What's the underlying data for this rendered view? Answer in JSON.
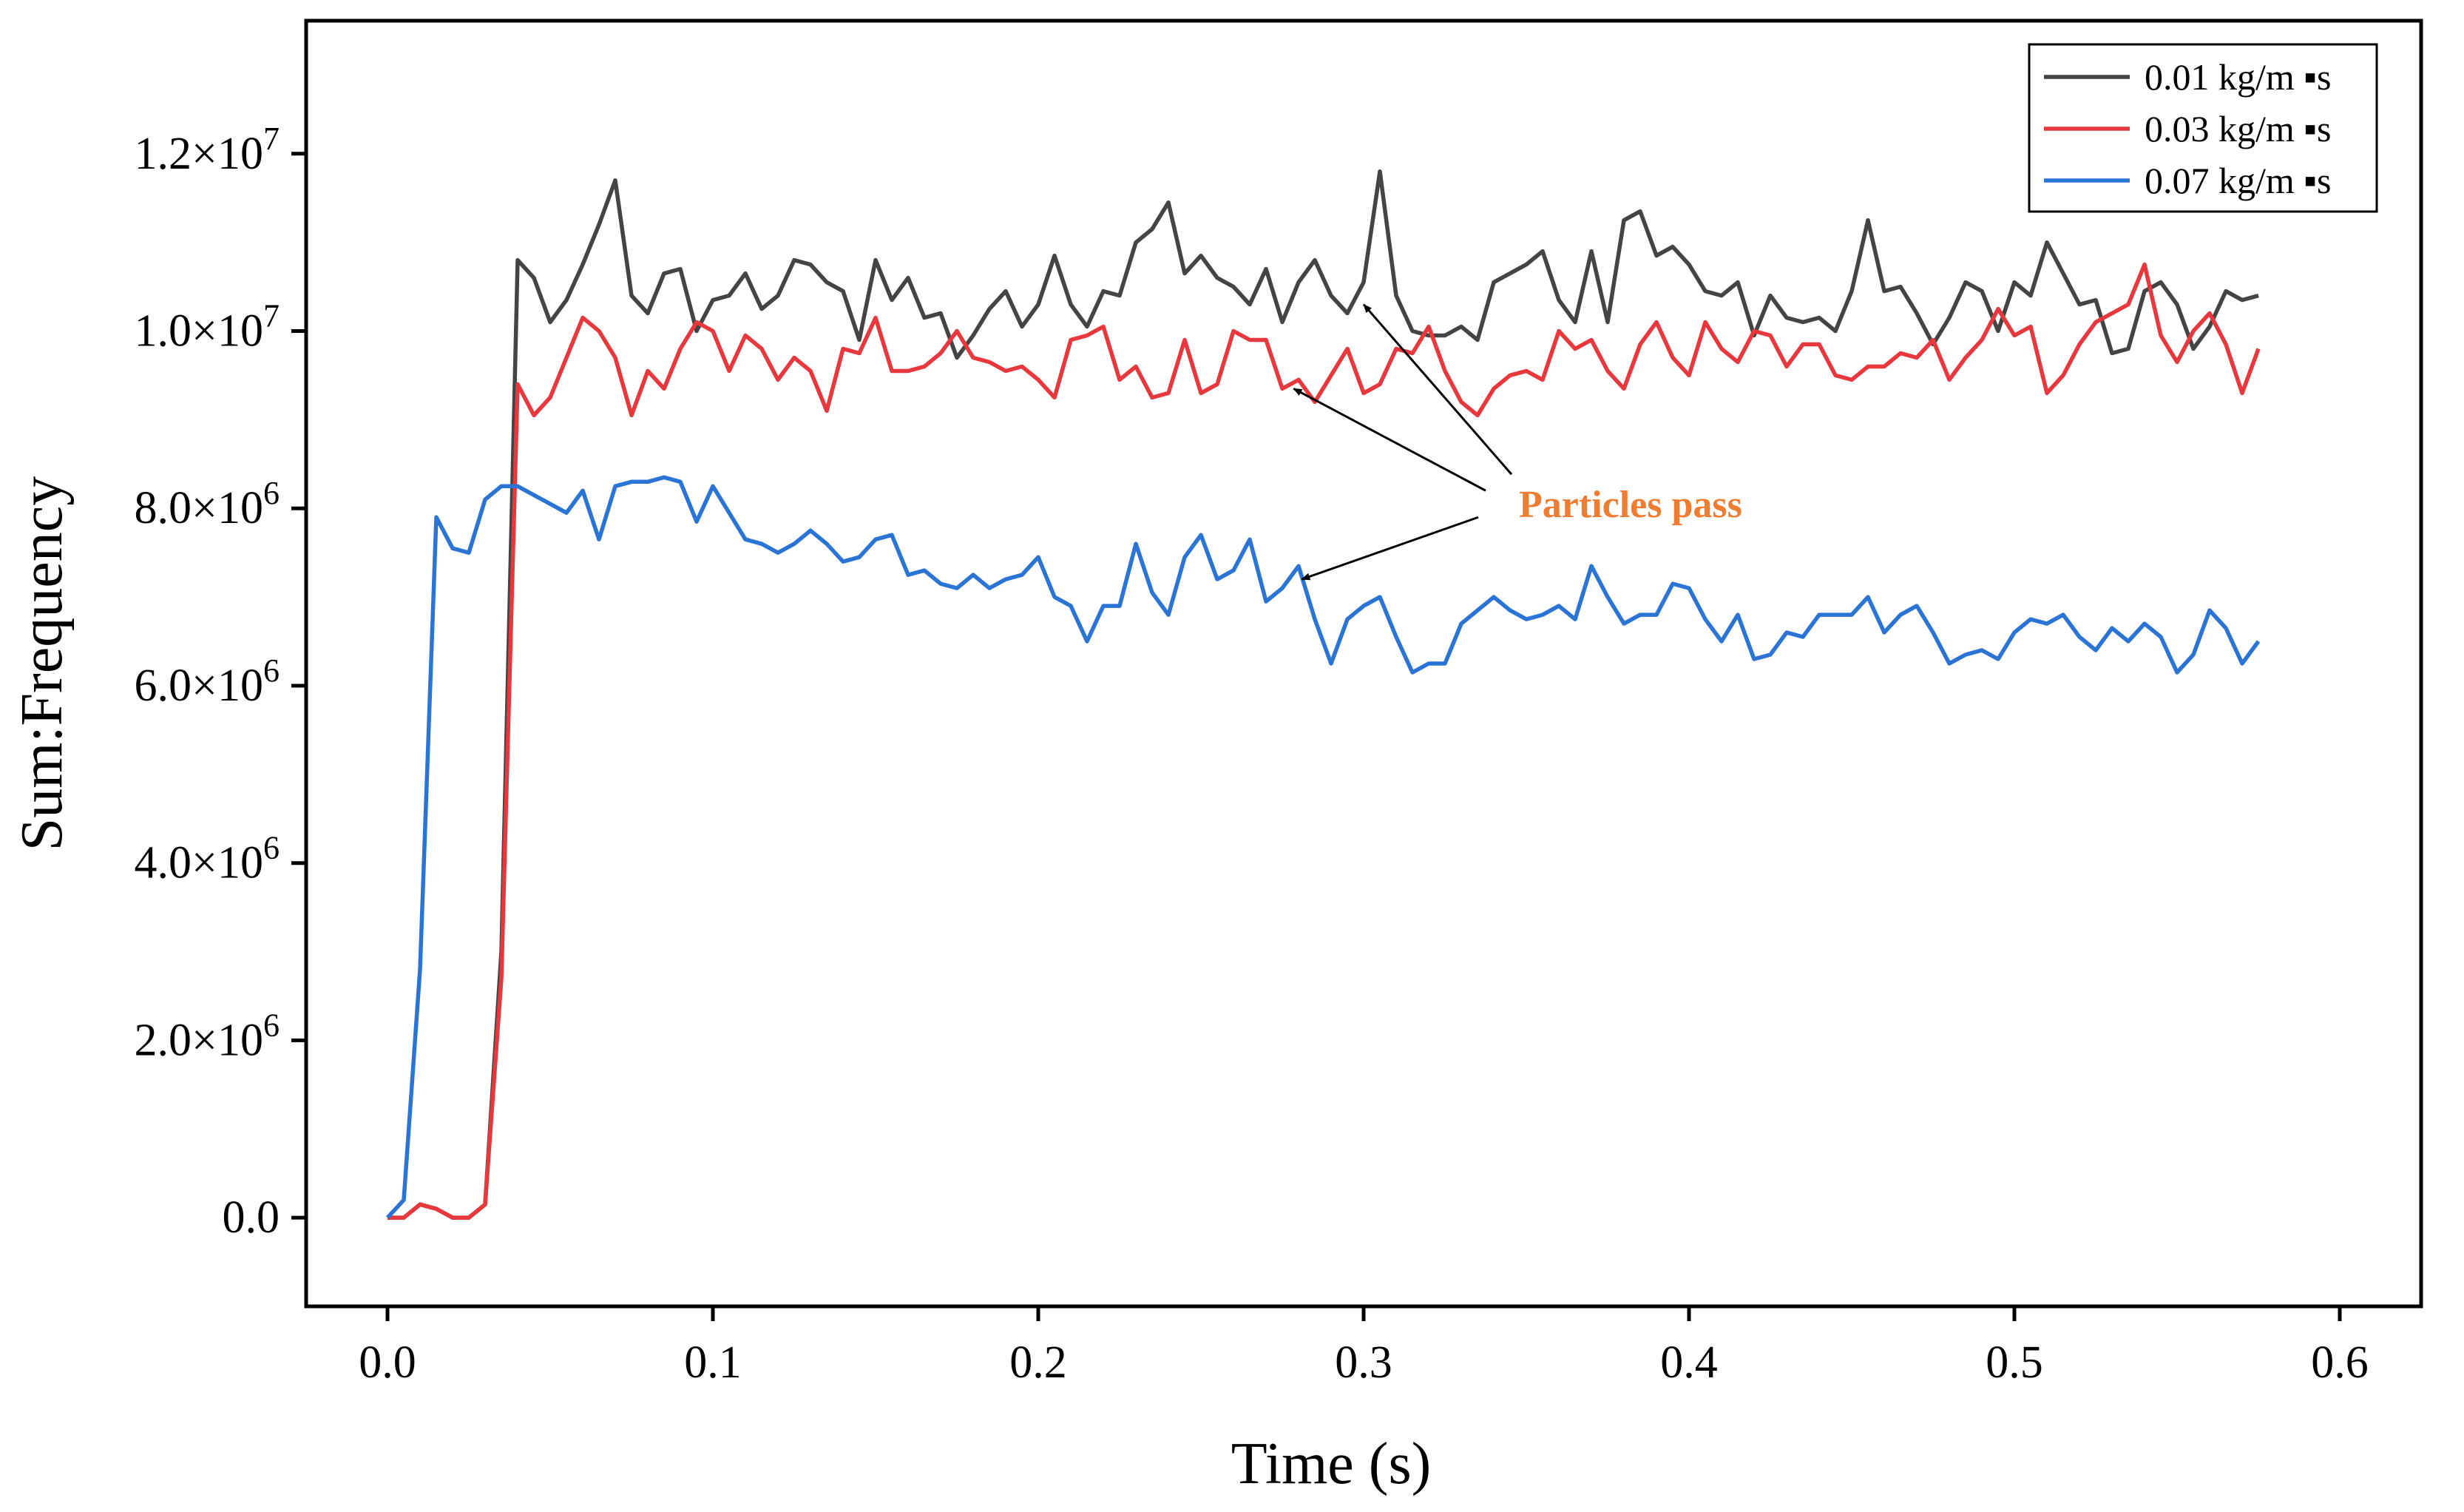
{
  "chart_data": {
    "type": "line",
    "title": "",
    "xlabel": "Time (s)",
    "ylabel": "Sum:Frequency",
    "xlim": [
      -0.025,
      0.625
    ],
    "ylim": [
      -1000000,
      13500000
    ],
    "x_ticks": [
      {
        "value": 0.0,
        "label": "0.0"
      },
      {
        "value": 0.1,
        "label": "0.1"
      },
      {
        "value": 0.2,
        "label": "0.2"
      },
      {
        "value": 0.3,
        "label": "0.3"
      },
      {
        "value": 0.4,
        "label": "0.4"
      },
      {
        "value": 0.5,
        "label": "0.5"
      },
      {
        "value": 0.6,
        "label": "0.6"
      }
    ],
    "y_ticks": [
      {
        "value": 0,
        "mantissa": "0.0",
        "exp": ""
      },
      {
        "value": 2000000,
        "mantissa": "2.0×10",
        "exp": "6"
      },
      {
        "value": 4000000,
        "mantissa": "4.0×10",
        "exp": "6"
      },
      {
        "value": 6000000,
        "mantissa": "6.0×10",
        "exp": "6"
      },
      {
        "value": 8000000,
        "mantissa": "8.0×10",
        "exp": "6"
      },
      {
        "value": 10000000,
        "mantissa": "1.0×10",
        "exp": "7"
      },
      {
        "value": 12000000,
        "mantissa": "1.2×10",
        "exp": "7"
      }
    ],
    "grid": false,
    "legend_position": "top-right",
    "series": [
      {
        "name": "0.01 kg/m ▪s",
        "color": "#444444",
        "x": [
          0.0,
          0.005,
          0.01,
          0.015,
          0.02,
          0.025,
          0.03,
          0.035,
          0.04,
          0.045,
          0.05,
          0.055,
          0.06,
          0.065,
          0.07,
          0.075,
          0.08,
          0.085,
          0.09,
          0.095,
          0.1,
          0.105,
          0.11,
          0.115,
          0.12,
          0.125,
          0.13,
          0.135,
          0.14,
          0.145,
          0.15,
          0.155,
          0.16,
          0.165,
          0.17,
          0.175,
          0.18,
          0.185,
          0.19,
          0.195,
          0.2,
          0.205,
          0.21,
          0.215,
          0.22,
          0.225,
          0.23,
          0.235,
          0.24,
          0.245,
          0.25,
          0.255,
          0.26,
          0.265,
          0.27,
          0.275,
          0.28,
          0.285,
          0.29,
          0.295,
          0.3,
          0.305,
          0.31,
          0.315,
          0.32,
          0.325,
          0.33,
          0.335,
          0.34,
          0.345,
          0.35,
          0.355,
          0.36,
          0.365,
          0.37,
          0.375,
          0.38,
          0.385,
          0.39,
          0.395,
          0.4,
          0.405,
          0.41,
          0.415,
          0.42,
          0.425,
          0.43,
          0.435,
          0.44,
          0.445,
          0.45,
          0.455,
          0.46,
          0.465,
          0.47,
          0.475,
          0.48,
          0.485,
          0.49,
          0.495,
          0.5,
          0.505,
          0.51,
          0.515,
          0.52,
          0.525,
          0.53,
          0.535,
          0.54,
          0.545,
          0.55,
          0.555,
          0.56,
          0.565,
          0.57,
          0.575
        ],
        "y": [
          0,
          0,
          150000,
          100000,
          0,
          0,
          150000,
          3000000,
          10800000,
          10600000,
          10100000,
          10350000,
          10750000,
          11200000,
          11700000,
          10400000,
          10200000,
          10650000,
          10700000,
          10000000,
          10350000,
          10400000,
          10650000,
          10250000,
          10400000,
          10800000,
          10750000,
          10550000,
          10450000,
          9900000,
          10800000,
          10350000,
          10600000,
          10150000,
          10200000,
          9700000,
          9950000,
          10250000,
          10450000,
          10050000,
          10300000,
          10850000,
          10300000,
          10050000,
          10450000,
          10400000,
          11000000,
          11150000,
          11450000,
          10650000,
          10850000,
          10600000,
          10500000,
          10300000,
          10700000,
          10100000,
          10550000,
          10800000,
          10400000,
          10200000,
          10550000,
          11800000,
          10400000,
          10000000,
          9950000,
          9950000,
          10050000,
          9900000,
          10550000,
          10650000,
          10750000,
          10900000,
          10350000,
          10100000,
          10900000,
          10100000,
          11250000,
          11350000,
          10850000,
          10950000,
          10750000,
          10450000,
          10400000,
          10550000,
          9950000,
          10400000,
          10150000,
          10100000,
          10150000,
          10000000,
          10450000,
          11250000,
          10450000,
          10500000,
          10200000,
          9850000,
          10150000,
          10550000,
          10450000,
          10000000,
          10550000,
          10400000,
          11000000,
          10650000,
          10300000,
          10350000,
          9750000,
          9800000,
          10450000,
          10550000,
          10300000,
          9800000,
          10050000,
          10450000,
          10350000,
          10400000
        ]
      },
      {
        "name": "0.03 kg/m ▪s",
        "color": "#e8383d",
        "x": [
          0.0,
          0.005,
          0.01,
          0.015,
          0.02,
          0.025,
          0.03,
          0.035,
          0.04,
          0.045,
          0.05,
          0.055,
          0.06,
          0.065,
          0.07,
          0.075,
          0.08,
          0.085,
          0.09,
          0.095,
          0.1,
          0.105,
          0.11,
          0.115,
          0.12,
          0.125,
          0.13,
          0.135,
          0.14,
          0.145,
          0.15,
          0.155,
          0.16,
          0.165,
          0.17,
          0.175,
          0.18,
          0.185,
          0.19,
          0.195,
          0.2,
          0.205,
          0.21,
          0.215,
          0.22,
          0.225,
          0.23,
          0.235,
          0.24,
          0.245,
          0.25,
          0.255,
          0.26,
          0.265,
          0.27,
          0.275,
          0.28,
          0.285,
          0.29,
          0.295,
          0.3,
          0.305,
          0.31,
          0.315,
          0.32,
          0.325,
          0.33,
          0.335,
          0.34,
          0.345,
          0.35,
          0.355,
          0.36,
          0.365,
          0.37,
          0.375,
          0.38,
          0.385,
          0.39,
          0.395,
          0.4,
          0.405,
          0.41,
          0.415,
          0.42,
          0.425,
          0.43,
          0.435,
          0.44,
          0.445,
          0.45,
          0.455,
          0.46,
          0.465,
          0.47,
          0.475,
          0.48,
          0.485,
          0.49,
          0.495,
          0.5,
          0.505,
          0.51,
          0.515,
          0.52,
          0.525,
          0.53,
          0.535,
          0.54,
          0.545,
          0.55,
          0.555,
          0.56,
          0.565,
          0.57,
          0.575
        ],
        "y": [
          0,
          0,
          150000,
          100000,
          0,
          0,
          150000,
          2700000,
          9400000,
          9050000,
          9250000,
          9700000,
          10150000,
          10000000,
          9700000,
          9050000,
          9550000,
          9350000,
          9800000,
          10100000,
          10000000,
          9550000,
          9950000,
          9800000,
          9450000,
          9700000,
          9550000,
          9100000,
          9800000,
          9750000,
          10150000,
          9550000,
          9550000,
          9600000,
          9750000,
          10000000,
          9700000,
          9650000,
          9550000,
          9600000,
          9450000,
          9250000,
          9900000,
          9950000,
          10050000,
          9450000,
          9600000,
          9250000,
          9300000,
          9900000,
          9300000,
          9400000,
          10000000,
          9900000,
          9900000,
          9350000,
          9450000,
          9200000,
          9500000,
          9800000,
          9300000,
          9400000,
          9800000,
          9750000,
          10050000,
          9550000,
          9200000,
          9050000,
          9350000,
          9500000,
          9550000,
          9450000,
          10000000,
          9800000,
          9900000,
          9550000,
          9350000,
          9850000,
          10100000,
          9700000,
          9500000,
          10100000,
          9800000,
          9650000,
          10000000,
          9950000,
          9600000,
          9850000,
          9850000,
          9500000,
          9450000,
          9600000,
          9600000,
          9750000,
          9700000,
          9900000,
          9450000,
          9700000,
          9900000,
          10250000,
          9950000,
          10050000,
          9300000,
          9500000,
          9850000,
          10100000,
          10200000,
          10300000,
          10750000,
          9950000,
          9650000,
          10000000,
          10200000,
          9850000,
          9300000,
          9800000
        ]
      },
      {
        "name": "0.07 kg/m ▪s",
        "color": "#2a74d6",
        "x": [
          0.0,
          0.005,
          0.01,
          0.015,
          0.02,
          0.025,
          0.03,
          0.035,
          0.04,
          0.045,
          0.05,
          0.055,
          0.06,
          0.065,
          0.07,
          0.075,
          0.08,
          0.085,
          0.09,
          0.095,
          0.1,
          0.105,
          0.11,
          0.115,
          0.12,
          0.125,
          0.13,
          0.135,
          0.14,
          0.145,
          0.15,
          0.155,
          0.16,
          0.165,
          0.17,
          0.175,
          0.18,
          0.185,
          0.19,
          0.195,
          0.2,
          0.205,
          0.21,
          0.215,
          0.22,
          0.225,
          0.23,
          0.235,
          0.24,
          0.245,
          0.25,
          0.255,
          0.26,
          0.265,
          0.27,
          0.275,
          0.28,
          0.285,
          0.29,
          0.295,
          0.3,
          0.305,
          0.31,
          0.315,
          0.32,
          0.325,
          0.33,
          0.335,
          0.34,
          0.345,
          0.35,
          0.355,
          0.36,
          0.365,
          0.37,
          0.375,
          0.38,
          0.385,
          0.39,
          0.395,
          0.4,
          0.405,
          0.41,
          0.415,
          0.42,
          0.425,
          0.43,
          0.435,
          0.44,
          0.445,
          0.45,
          0.455,
          0.46,
          0.465,
          0.47,
          0.475,
          0.48,
          0.485,
          0.49,
          0.495,
          0.5,
          0.505,
          0.51,
          0.515,
          0.52,
          0.525,
          0.53,
          0.535,
          0.54,
          0.545,
          0.55,
          0.555,
          0.56,
          0.565,
          0.57,
          0.575
        ],
        "y": [
          0,
          200000,
          2800000,
          7900000,
          7550000,
          7500000,
          8100000,
          8250000,
          8250000,
          8150000,
          8050000,
          7950000,
          8200000,
          7650000,
          8250000,
          8300000,
          8300000,
          8350000,
          8300000,
          7850000,
          8250000,
          7950000,
          7650000,
          7600000,
          7500000,
          7600000,
          7750000,
          7600000,
          7400000,
          7450000,
          7650000,
          7700000,
          7250000,
          7300000,
          7150000,
          7100000,
          7250000,
          7100000,
          7200000,
          7250000,
          7450000,
          7000000,
          6900000,
          6500000,
          6900000,
          6900000,
          7600000,
          7050000,
          6800000,
          7450000,
          7700000,
          7200000,
          7300000,
          7650000,
          6950000,
          7100000,
          7350000,
          6750000,
          6250000,
          6750000,
          6900000,
          7000000,
          6550000,
          6150000,
          6250000,
          6250000,
          6700000,
          6850000,
          7000000,
          6850000,
          6750000,
          6800000,
          6900000,
          6750000,
          7350000,
          7000000,
          6700000,
          6800000,
          6800000,
          7150000,
          7100000,
          6750000,
          6500000,
          6800000,
          6300000,
          6350000,
          6600000,
          6550000,
          6800000,
          6800000,
          6800000,
          7000000,
          6600000,
          6800000,
          6900000,
          6600000,
          6250000,
          6350000,
          6400000,
          6300000,
          6600000,
          6750000,
          6700000,
          6800000,
          6550000,
          6400000,
          6650000,
          6500000,
          6700000,
          6550000,
          6150000,
          6350000,
          6850000,
          6650000,
          6250000,
          6500000
        ]
      }
    ],
    "annotations": [
      {
        "text": "Particles pass",
        "color": "#ee7d32",
        "anchor": {
          "x": 0.325,
          "y": 8050000
        },
        "arrow_targets": [
          {
            "x": 0.3,
            "y": 10300000
          },
          {
            "x": 0.2785,
            "y": 9350000
          },
          {
            "x": 0.281,
            "y": 7200000
          }
        ]
      }
    ]
  }
}
